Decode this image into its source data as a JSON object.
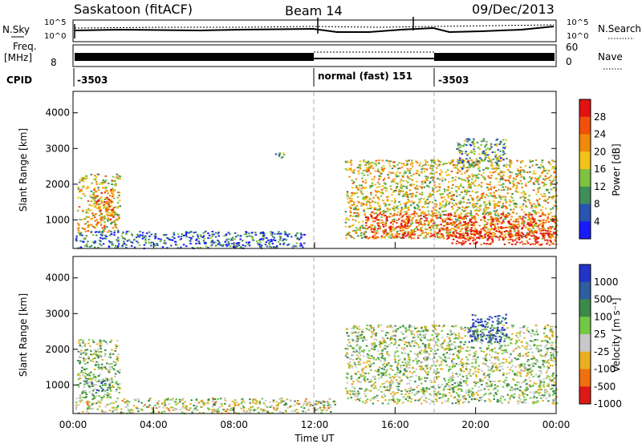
{
  "header": {
    "station": "Saskatoon (fitACF)",
    "beam": "Beam 14",
    "date": "09/Dec/2013"
  },
  "top_panels": {
    "nsky_label": "N.Sky",
    "nsearch_label": "N.Search",
    "scale_hi": "10^5",
    "scale_lo": "10^0",
    "freq_label": "Freq.",
    "freq_unit": "[MHz]",
    "freq_tick": "8",
    "nave_label": "Nave",
    "nave_ticks": [
      "60",
      "0"
    ],
    "cpid_label": "CPID",
    "cpid_segments": [
      {
        "label": "-3503",
        "start_hour": 0,
        "end_hour": 12
      },
      {
        "label": "normal (fast) 151",
        "start_hour": 12,
        "end_hour": 18
      },
      {
        "label": "-3503",
        "start_hour": 18,
        "end_hour": 24
      }
    ]
  },
  "colors": {
    "power": [
      "#1a1aff",
      "#2a55b0",
      "#3f8f5a",
      "#7fc241",
      "#f2c218",
      "#f08a0c",
      "#f2500a",
      "#e21212"
    ],
    "velocity": [
      "#2035c8",
      "#2e5e9e",
      "#3c8a4a",
      "#73c846",
      "#c8c8c8",
      "#e8b020",
      "#f07010",
      "#e01818"
    ]
  },
  "chart_data": [
    {
      "type": "heatmap",
      "quantity": "Power",
      "ylabel": "Slant Range [km]",
      "yticks": [
        "1000",
        "2000",
        "3000",
        "4000"
      ],
      "ylim": [
        200,
        4600
      ],
      "x_range_hours": [
        0,
        24
      ],
      "colorbar_label": "Power [dB]",
      "colorbar_ticks": [
        "4",
        "8",
        "12",
        "16",
        "20",
        "24",
        "28"
      ],
      "regions": [
        {
          "t": [
            0.2,
            2.3
          ],
          "r": [
            650,
            2300
          ],
          "level": 0.55
        },
        {
          "t": [
            1.0,
            2.0
          ],
          "r": [
            1000,
            1900
          ],
          "level": 0.75
        },
        {
          "t": [
            0.1,
            11.5
          ],
          "r": [
            220,
            700
          ],
          "level": 0.2
        },
        {
          "t": [
            10.0,
            10.5
          ],
          "r": [
            2750,
            2950
          ],
          "level": 0.3
        },
        {
          "t": [
            13.5,
            24.0
          ],
          "r": [
            500,
            2700
          ],
          "level": 0.55
        },
        {
          "t": [
            14.5,
            24.0
          ],
          "r": [
            500,
            1200
          ],
          "level": 0.85
        },
        {
          "t": [
            18.5,
            24.0
          ],
          "r": [
            320,
            700
          ],
          "level": 0.9
        },
        {
          "t": [
            19.0,
            21.5
          ],
          "r": [
            2400,
            3300
          ],
          "level": 0.35
        }
      ]
    },
    {
      "type": "heatmap",
      "quantity": "Velocity",
      "ylabel": "Slant Range [km]",
      "yticks": [
        "1000",
        "2000",
        "3000",
        "4000"
      ],
      "ylim": [
        200,
        4600
      ],
      "x_range_hours": [
        0,
        24
      ],
      "xticks": [
        "00:00",
        "04:00",
        "08:00",
        "12:00",
        "16:00",
        "20:00",
        "00:00"
      ],
      "xlabel": "Time UT",
      "colorbar_label": "Velocity [m s⁻¹]",
      "colorbar_ticks": [
        "1000",
        "500",
        "100",
        "25",
        "-25",
        "-100",
        "-500",
        "-1000"
      ],
      "regions": [
        {
          "t": [
            0.2,
            2.3
          ],
          "r": [
            650,
            2300
          ],
          "level": 0.5
        },
        {
          "t": [
            0.5,
            1.8
          ],
          "r": [
            850,
            1200
          ],
          "level": 0.3
        },
        {
          "t": [
            0.1,
            13.0
          ],
          "r": [
            220,
            650
          ],
          "level": 0.55
        },
        {
          "t": [
            13.5,
            24.0
          ],
          "r": [
            500,
            2700
          ],
          "level": 0.5
        },
        {
          "t": [
            19.5,
            21.5
          ],
          "r": [
            2200,
            3000
          ],
          "level": 0.15
        }
      ]
    }
  ]
}
